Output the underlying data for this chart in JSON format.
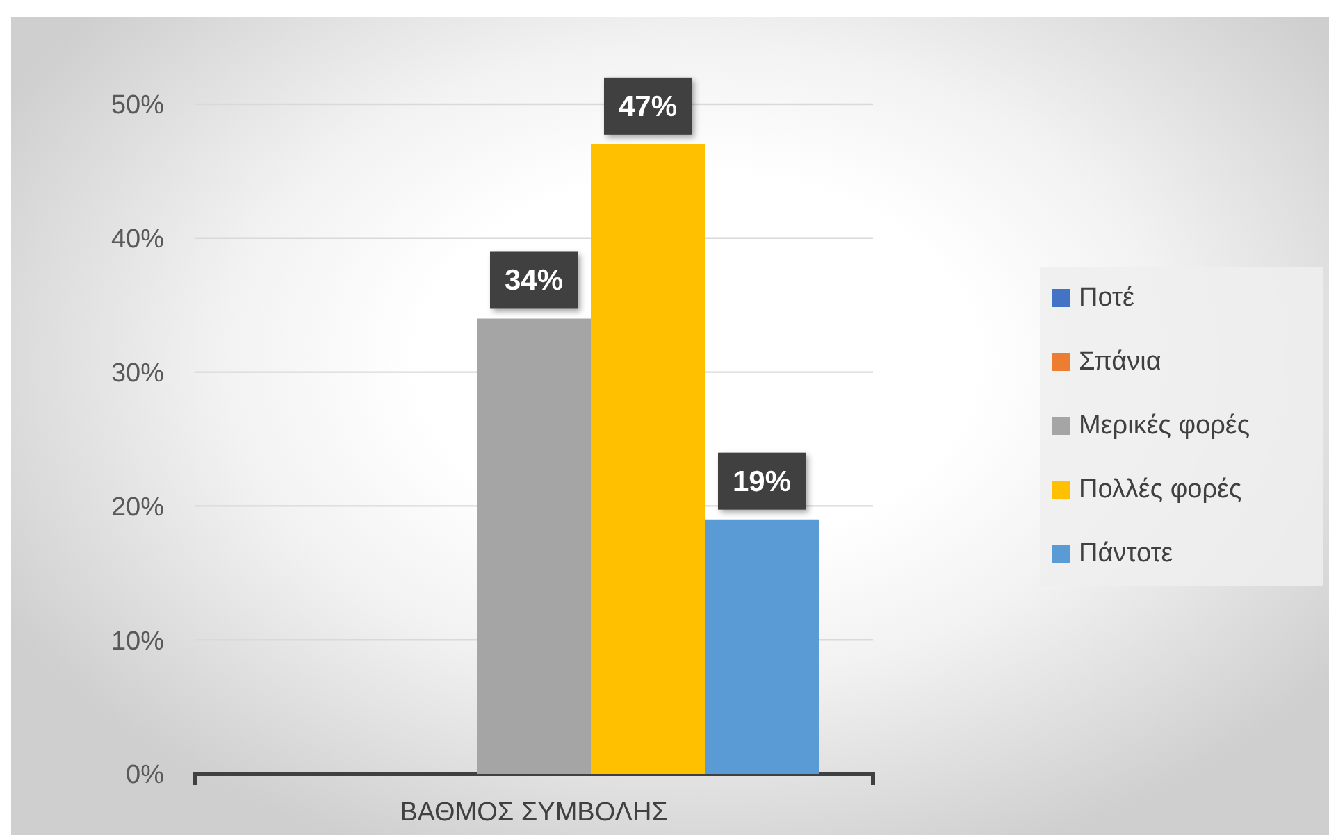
{
  "chart_data": {
    "type": "bar",
    "categories": [
      "ΒΑΘΜΟΣ ΣΥΜΒΟΛΗΣ"
    ],
    "series": [
      {
        "name": "Ποτέ",
        "color": "#4472c4",
        "values": [
          0
        ],
        "value_labels": [
          null
        ]
      },
      {
        "name": "Σπάνια",
        "color": "#ed7d31",
        "values": [
          0
        ],
        "value_labels": [
          null
        ]
      },
      {
        "name": "Μερικές φορές",
        "color": "#a5a5a5",
        "values": [
          34
        ],
        "value_labels": [
          "34%"
        ]
      },
      {
        "name": "Πολλές φορές",
        "color": "#ffc000",
        "values": [
          47
        ],
        "value_labels": [
          "47%"
        ]
      },
      {
        "name": "Πάντοτε",
        "color": "#5b9bd5",
        "values": [
          19
        ],
        "value_labels": [
          "19%"
        ]
      }
    ],
    "ylim": [
      0,
      50
    ],
    "yticks": [
      {
        "value": 0,
        "label": "0%"
      },
      {
        "value": 10,
        "label": "10%"
      },
      {
        "value": 20,
        "label": "20%"
      },
      {
        "value": 30,
        "label": "30%"
      },
      {
        "value": 40,
        "label": "40%"
      },
      {
        "value": 50,
        "label": "50%"
      }
    ],
    "grid": "y",
    "legend": "right"
  }
}
